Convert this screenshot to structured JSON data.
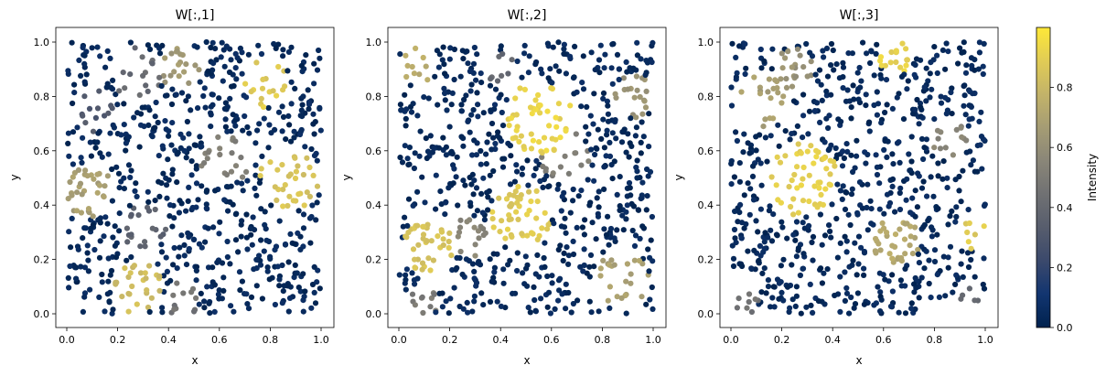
{
  "figure": {
    "colormap": "cividis",
    "colormap_stops": [
      "#00224e",
      "#123570",
      "#3b496c",
      "#575d6d",
      "#707173",
      "#8a8678",
      "#a59c74",
      "#c3b369",
      "#e1cc55",
      "#fee838"
    ],
    "colorbar": {
      "label": "Intensity",
      "range": [
        0,
        1
      ],
      "ticks": [
        0,
        0.2,
        0.4,
        0.6,
        0.8
      ],
      "tick_labels": [
        "0.0",
        "0.2",
        "0.4",
        "0.6",
        "0.8"
      ]
    }
  },
  "chart_data": [
    {
      "type": "scatter",
      "title": "W[:,1]",
      "xlabel": "x",
      "ylabel": "y",
      "xlim": [
        0,
        1
      ],
      "ylim": [
        0,
        1
      ],
      "xticks": [
        "0.0",
        "0.2",
        "0.4",
        "0.6",
        "0.8",
        "1.0"
      ],
      "yticks": [
        "0.0",
        "0.2",
        "0.4",
        "0.6",
        "0.8",
        "1.0"
      ],
      "grid": false,
      "points_count": 800,
      "value_range": [
        0,
        1
      ],
      "clusters": [
        {
          "x": 0.78,
          "y": 0.85,
          "radius": 0.09,
          "value": 0.88
        },
        {
          "x": 0.88,
          "y": 0.5,
          "radius": 0.12,
          "value": 0.85
        },
        {
          "x": 0.28,
          "y": 0.1,
          "radius": 0.1,
          "value": 0.82
        },
        {
          "x": 0.08,
          "y": 0.45,
          "radius": 0.1,
          "value": 0.68
        },
        {
          "x": 0.45,
          "y": 0.9,
          "radius": 0.08,
          "value": 0.65
        },
        {
          "x": 0.62,
          "y": 0.57,
          "radius": 0.1,
          "value": 0.52
        },
        {
          "x": 0.28,
          "y": 0.88,
          "radius": 0.1,
          "value": 0.4
        },
        {
          "x": 0.3,
          "y": 0.32,
          "radius": 0.09,
          "value": 0.36
        },
        {
          "x": 0.1,
          "y": 0.75,
          "radius": 0.08,
          "value": 0.3
        },
        {
          "x": 0.45,
          "y": 0.05,
          "radius": 0.07,
          "value": 0.45
        }
      ]
    },
    {
      "type": "scatter",
      "title": "W[:,2]",
      "xlabel": "x",
      "ylabel": "y",
      "xlim": [
        0,
        1
      ],
      "ylim": [
        0,
        1
      ],
      "xticks": [
        "0.0",
        "0.2",
        "0.4",
        "0.6",
        "0.8",
        "1.0"
      ],
      "yticks": [
        "0.0",
        "0.2",
        "0.4",
        "0.6",
        "0.8",
        "1.0"
      ],
      "grid": false,
      "points_count": 800,
      "value_range": [
        0,
        1
      ],
      "clusters": [
        {
          "x": 0.55,
          "y": 0.72,
          "radius": 0.14,
          "value": 0.92
        },
        {
          "x": 0.48,
          "y": 0.35,
          "radius": 0.12,
          "value": 0.88
        },
        {
          "x": 0.12,
          "y": 0.25,
          "radius": 0.11,
          "value": 0.85
        },
        {
          "x": 0.08,
          "y": 0.92,
          "radius": 0.07,
          "value": 0.75
        },
        {
          "x": 0.88,
          "y": 0.12,
          "radius": 0.11,
          "value": 0.7
        },
        {
          "x": 0.92,
          "y": 0.8,
          "radius": 0.08,
          "value": 0.62
        },
        {
          "x": 0.65,
          "y": 0.58,
          "radius": 0.1,
          "value": 0.5
        },
        {
          "x": 0.28,
          "y": 0.28,
          "radius": 0.08,
          "value": 0.55
        },
        {
          "x": 0.1,
          "y": 0.05,
          "radius": 0.06,
          "value": 0.5
        },
        {
          "x": 0.4,
          "y": 0.9,
          "radius": 0.07,
          "value": 0.4
        }
      ]
    },
    {
      "type": "scatter",
      "title": "W[:,3]",
      "xlabel": "x",
      "ylabel": "y",
      "xlim": [
        0,
        1
      ],
      "ylim": [
        0,
        1
      ],
      "xticks": [
        "0.0",
        "0.2",
        "0.4",
        "0.6",
        "0.8",
        "1.0"
      ],
      "yticks": [
        "0.0",
        "0.2",
        "0.4",
        "0.6",
        "0.8",
        "1.0"
      ],
      "grid": false,
      "points_count": 800,
      "value_range": [
        0,
        1
      ],
      "clusters": [
        {
          "x": 0.28,
          "y": 0.5,
          "radius": 0.14,
          "value": 0.9
        },
        {
          "x": 0.65,
          "y": 0.95,
          "radius": 0.07,
          "value": 0.92
        },
        {
          "x": 0.95,
          "y": 0.3,
          "radius": 0.07,
          "value": 0.88
        },
        {
          "x": 0.12,
          "y": 0.78,
          "radius": 0.1,
          "value": 0.68
        },
        {
          "x": 0.25,
          "y": 0.9,
          "radius": 0.08,
          "value": 0.62
        },
        {
          "x": 0.65,
          "y": 0.27,
          "radius": 0.1,
          "value": 0.72
        },
        {
          "x": 0.85,
          "y": 0.65,
          "radius": 0.08,
          "value": 0.55
        },
        {
          "x": 0.05,
          "y": 0.05,
          "radius": 0.06,
          "value": 0.45
        },
        {
          "x": 0.95,
          "y": 0.05,
          "radius": 0.06,
          "value": 0.4
        }
      ]
    }
  ]
}
